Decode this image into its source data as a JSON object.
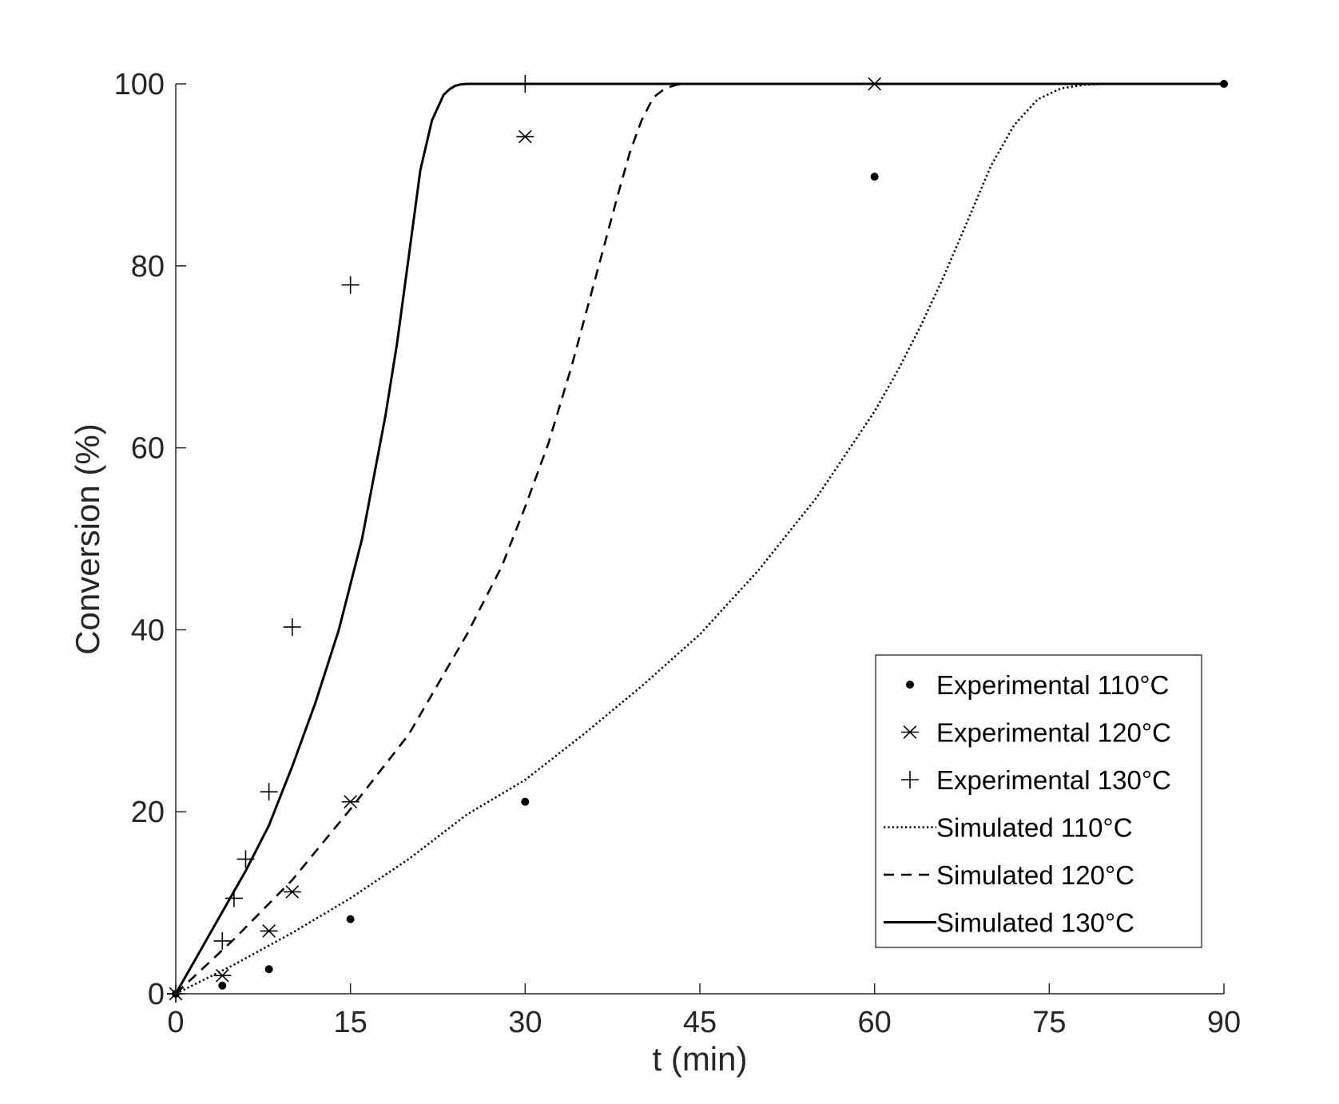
{
  "chart_data": {
    "type": "line",
    "title": "",
    "xlabel": "t (min)",
    "ylabel": "Conversion (%)",
    "xlim": [
      0,
      90
    ],
    "ylim": [
      0,
      100
    ],
    "xticks": [
      0,
      15,
      30,
      45,
      60,
      75,
      90
    ],
    "yticks": [
      0,
      20,
      40,
      60,
      80,
      100
    ],
    "xtick_labels": [
      "0",
      "15",
      "30",
      "45",
      "60",
      "75",
      "90"
    ],
    "ytick_labels": [
      "0",
      "20",
      "40",
      "60",
      "80",
      "100"
    ],
    "grid": false,
    "box": false,
    "legend_position": "bottom-right",
    "line_color": "#000000",
    "series": [
      {
        "name": "Experimental 110°C",
        "kind": "scatter",
        "marker": "dot",
        "x": [
          0,
          4,
          8,
          15,
          30,
          60,
          90
        ],
        "y": [
          0,
          0.9,
          2.7,
          8.2,
          21.1,
          89.8,
          100
        ]
      },
      {
        "name": "Experimental 120°C",
        "kind": "scatter",
        "marker": "asterisk",
        "x": [
          0,
          4,
          8,
          10,
          15,
          30,
          60
        ],
        "y": [
          0,
          2.0,
          6.9,
          11.2,
          21.1,
          94.2,
          100
        ]
      },
      {
        "name": "Experimental 130°C",
        "kind": "scatter",
        "marker": "plus",
        "x": [
          0,
          4,
          5,
          6,
          8,
          10,
          15,
          30
        ],
        "y": [
          0,
          5.8,
          10.5,
          14.8,
          22.2,
          40.3,
          77.9,
          100
        ]
      },
      {
        "name": "Simulated 110°C",
        "kind": "line",
        "dash": "dotted",
        "x": [
          0,
          5,
          10,
          15,
          20,
          25,
          30,
          35,
          40,
          45,
          50,
          55,
          60,
          62,
          64,
          66,
          68,
          70,
          72,
          74,
          76,
          78,
          80,
          85,
          90
        ],
        "y": [
          0,
          3.2,
          6.7,
          10.5,
          14.8,
          19.7,
          23.5,
          28.5,
          33.8,
          39.5,
          46.5,
          54.5,
          64.0,
          68.5,
          73.5,
          79.0,
          85.0,
          91.0,
          95.5,
          98.3,
          99.5,
          99.9,
          100,
          100,
          100
        ]
      },
      {
        "name": "Simulated 120°C",
        "kind": "line",
        "dash": "dashed",
        "x": [
          0,
          5,
          10,
          15,
          20,
          25,
          28,
          30,
          32,
          34,
          36,
          38,
          39,
          40,
          41,
          42,
          43,
          44,
          45,
          60,
          90
        ],
        "y": [
          0,
          6.0,
          12.5,
          20.3,
          28.5,
          39.5,
          47.0,
          53.5,
          60.5,
          69.0,
          78.5,
          88.0,
          92.5,
          96.0,
          98.5,
          99.5,
          99.9,
          100,
          100,
          100,
          100
        ]
      },
      {
        "name": "Simulated 130°C",
        "kind": "line",
        "dash": "solid",
        "x": [
          0,
          2,
          4,
          6,
          8,
          10,
          12,
          14,
          16,
          18,
          19,
          20,
          21,
          22,
          23,
          23.5,
          24,
          24.5,
          25,
          26,
          30,
          60,
          90
        ],
        "y": [
          0,
          4.5,
          9.0,
          13.5,
          18.5,
          25.0,
          32.0,
          40.0,
          50.0,
          63.5,
          71.5,
          81.0,
          90.5,
          96.0,
          98.8,
          99.4,
          99.8,
          99.95,
          100,
          100,
          100,
          100,
          100
        ]
      }
    ]
  }
}
